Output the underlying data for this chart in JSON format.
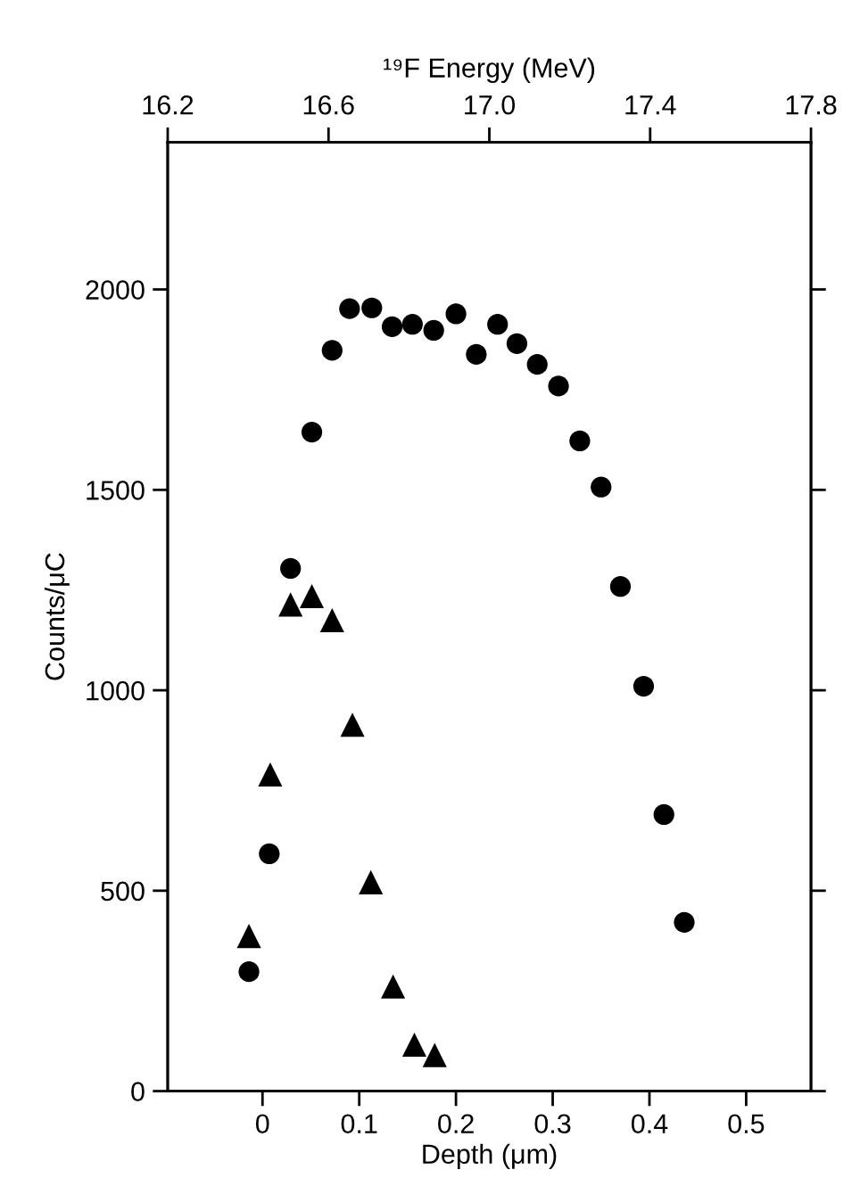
{
  "chart_data": {
    "type": "scatter",
    "xlabel": "Depth (μm)",
    "ylabel": "Counts/μC",
    "x2label": "¹⁹F Energy (MeV)",
    "xlim": [
      -0.098,
      0.567
    ],
    "xticks": [
      0,
      0.1,
      0.2,
      0.3,
      0.4,
      0.5
    ],
    "ylim": [
      0,
      2367
    ],
    "yticks": [
      0,
      500,
      1000,
      1500,
      2000
    ],
    "x2lim": [
      16.2,
      17.8
    ],
    "x2ticks": [
      {
        "value": 16.2,
        "label": "16.2"
      },
      {
        "value": 16.6,
        "label": "16.6"
      },
      {
        "value": 17.0,
        "label": "17.0"
      },
      {
        "value": 17.4,
        "label": "17.4"
      },
      {
        "value": 17.8,
        "label": "17.8"
      }
    ],
    "grid": false,
    "series": [
      {
        "color": "#000000",
        "marker": "circle",
        "x": [
          -0.014,
          0.007,
          0.029,
          0.051,
          0.072,
          0.09,
          0.113,
          0.134,
          0.155,
          0.177,
          0.2,
          0.221,
          0.243,
          0.263,
          0.284,
          0.306,
          0.328,
          0.35,
          0.37,
          0.394,
          0.415,
          0.436
        ],
        "values": [
          298,
          592,
          1304,
          1644,
          1848,
          1952,
          1954,
          1907,
          1913,
          1898,
          1939,
          1838,
          1913,
          1865,
          1813,
          1759,
          1622,
          1507,
          1259,
          1010,
          690,
          421
        ]
      },
      {
        "color": "#000000",
        "marker": "triangle",
        "x": [
          -0.014,
          0.008,
          0.029,
          0.051,
          0.072,
          0.093,
          0.112,
          0.135,
          0.157,
          0.178
        ],
        "values": [
          387,
          790,
          1214,
          1235,
          1175,
          914,
          521,
          261,
          116,
          90
        ]
      }
    ]
  }
}
